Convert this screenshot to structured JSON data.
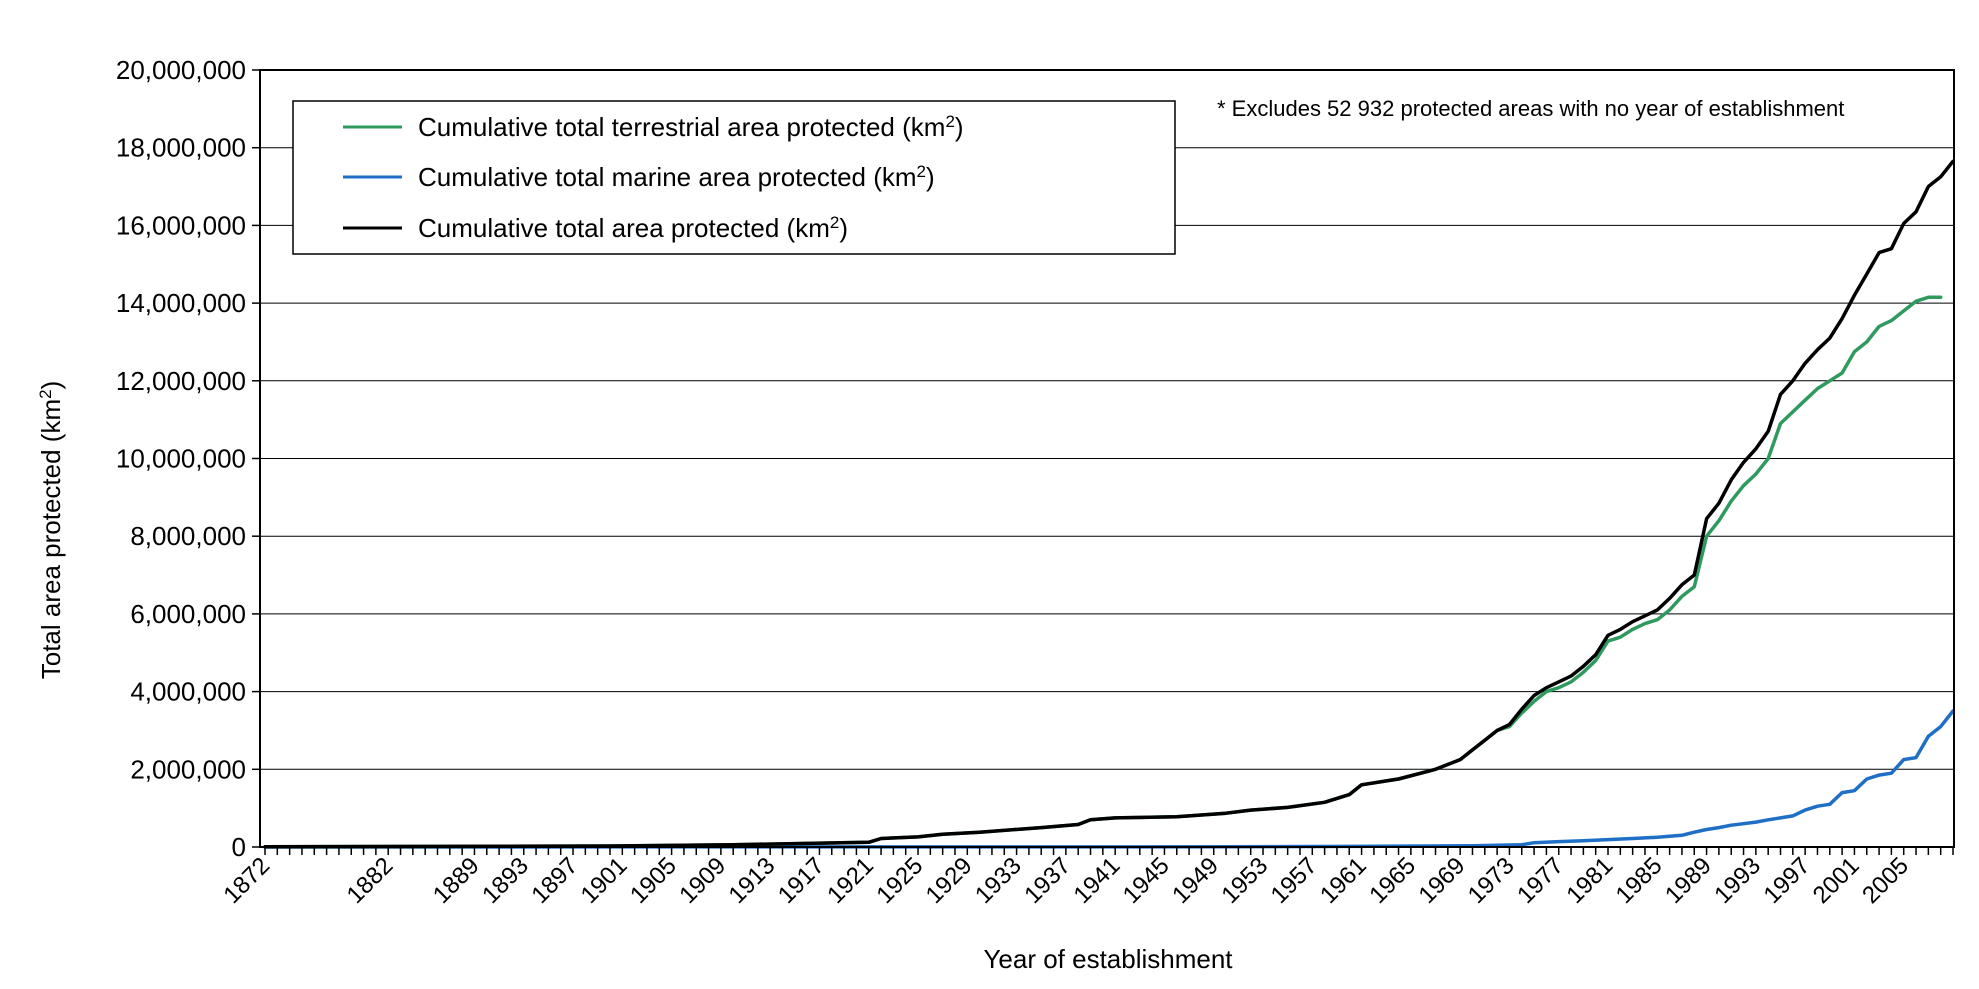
{
  "chart_data": {
    "type": "line",
    "ylabel_main": "Total area protected (km",
    "ylabel_sup": "2",
    "ylabel_end": ")",
    "xlabel": "Year of establishment",
    "note": "* Excludes 52 932 protected areas with no year of establishment",
    "ylim": [
      0,
      20000000
    ],
    "xlim": [
      1872,
      2008
    ],
    "y_ticks": [
      0,
      2000000,
      4000000,
      6000000,
      8000000,
      10000000,
      12000000,
      14000000,
      16000000,
      18000000,
      20000000
    ],
    "y_tick_labels": [
      "0",
      "2,000,000",
      "4,000,000",
      "6,000,000",
      "8,000,000",
      "10,000,000",
      "12,000,000",
      "14,000,000",
      "16,000,000",
      "18,000,000",
      "20,000,000"
    ],
    "x_tick_labels": [
      "1872",
      "1882",
      "1889",
      "1893",
      "1897",
      "1901",
      "1905",
      "1909",
      "1913",
      "1917",
      "1921",
      "1925",
      "1929",
      "1933",
      "1937",
      "1941",
      "1945",
      "1949",
      "1953",
      "1957",
      "1961",
      "1965",
      "1969",
      "1973",
      "1977",
      "1981",
      "1985",
      "1989",
      "1993",
      "1997",
      "2001",
      "2005"
    ],
    "grid": "horizontal",
    "legend_position": "top-left",
    "series": [
      {
        "name_main": "Cumulative total terrestrial area protected (km",
        "name_sup": "2",
        "name_end": ")",
        "color": "#2e9a5e",
        "points": [
          [
            1872,
            5000
          ],
          [
            1900,
            25000
          ],
          [
            1910,
            60000
          ],
          [
            1921,
            120000
          ],
          [
            1922,
            220000
          ],
          [
            1925,
            260000
          ],
          [
            1927,
            330000
          ],
          [
            1930,
            380000
          ],
          [
            1935,
            500000
          ],
          [
            1938,
            580000
          ],
          [
            1939,
            700000
          ],
          [
            1941,
            750000
          ],
          [
            1946,
            780000
          ],
          [
            1950,
            870000
          ],
          [
            1952,
            950000
          ],
          [
            1955,
            1020000
          ],
          [
            1958,
            1150000
          ],
          [
            1960,
            1350000
          ],
          [
            1961,
            1600000
          ],
          [
            1964,
            1750000
          ],
          [
            1967,
            2000000
          ],
          [
            1969,
            2250000
          ],
          [
            1970,
            2500000
          ],
          [
            1971,
            2750000
          ],
          [
            1972,
            3000000
          ],
          [
            1973,
            3100000
          ],
          [
            1974,
            3450000
          ],
          [
            1975,
            3750000
          ],
          [
            1976,
            4000000
          ],
          [
            1977,
            4100000
          ],
          [
            1978,
            4250000
          ],
          [
            1979,
            4500000
          ],
          [
            1980,
            4800000
          ],
          [
            1981,
            5300000
          ],
          [
            1982,
            5400000
          ],
          [
            1983,
            5600000
          ],
          [
            1984,
            5750000
          ],
          [
            1985,
            5850000
          ],
          [
            1986,
            6100000
          ],
          [
            1987,
            6450000
          ],
          [
            1988,
            6700000
          ],
          [
            1989,
            8000000
          ],
          [
            1990,
            8400000
          ],
          [
            1991,
            8900000
          ],
          [
            1992,
            9300000
          ],
          [
            1993,
            9600000
          ],
          [
            1994,
            10000000
          ],
          [
            1995,
            10900000
          ],
          [
            1996,
            11200000
          ],
          [
            1997,
            11500000
          ],
          [
            1998,
            11800000
          ],
          [
            1999,
            12000000
          ],
          [
            2000,
            12200000
          ],
          [
            2001,
            12750000
          ],
          [
            2002,
            13000000
          ],
          [
            2003,
            13400000
          ],
          [
            2004,
            13550000
          ],
          [
            2005,
            13800000
          ],
          [
            2006,
            14050000
          ],
          [
            2007,
            14150000
          ],
          [
            2008,
            14150000
          ]
        ]
      },
      {
        "name_main": "Cumulative total marine area protected (km",
        "name_sup": "2",
        "name_end": ")",
        "color": "#1f6fc7",
        "points": [
          [
            1872,
            0
          ],
          [
            1950,
            5000
          ],
          [
            1960,
            15000
          ],
          [
            1970,
            30000
          ],
          [
            1974,
            60000
          ],
          [
            1975,
            110000
          ],
          [
            1977,
            140000
          ],
          [
            1979,
            160000
          ],
          [
            1981,
            190000
          ],
          [
            1983,
            220000
          ],
          [
            1985,
            250000
          ],
          [
            1987,
            300000
          ],
          [
            1988,
            380000
          ],
          [
            1989,
            450000
          ],
          [
            1990,
            500000
          ],
          [
            1991,
            560000
          ],
          [
            1992,
            600000
          ],
          [
            1993,
            640000
          ],
          [
            1994,
            700000
          ],
          [
            1995,
            750000
          ],
          [
            1996,
            800000
          ],
          [
            1997,
            950000
          ],
          [
            1998,
            1050000
          ],
          [
            1999,
            1100000
          ],
          [
            2000,
            1400000
          ],
          [
            2001,
            1450000
          ],
          [
            2002,
            1750000
          ],
          [
            2003,
            1850000
          ],
          [
            2004,
            1900000
          ],
          [
            2005,
            2250000
          ],
          [
            2006,
            2300000
          ],
          [
            2007,
            2850000
          ],
          [
            2008,
            3100000
          ],
          [
            2009,
            3500000
          ]
        ]
      },
      {
        "name_main": "Cumulative total area protected (km",
        "name_sup": "2",
        "name_end": ")",
        "color": "#000000",
        "points": [
          [
            1872,
            5000
          ],
          [
            1900,
            25000
          ],
          [
            1910,
            60000
          ],
          [
            1921,
            120000
          ],
          [
            1922,
            220000
          ],
          [
            1925,
            260000
          ],
          [
            1927,
            330000
          ],
          [
            1930,
            380000
          ],
          [
            1935,
            500000
          ],
          [
            1938,
            580000
          ],
          [
            1939,
            700000
          ],
          [
            1941,
            750000
          ],
          [
            1946,
            780000
          ],
          [
            1950,
            870000
          ],
          [
            1952,
            950000
          ],
          [
            1955,
            1020000
          ],
          [
            1958,
            1150000
          ],
          [
            1960,
            1350000
          ],
          [
            1961,
            1600000
          ],
          [
            1964,
            1750000
          ],
          [
            1967,
            2000000
          ],
          [
            1969,
            2250000
          ],
          [
            1970,
            2500000
          ],
          [
            1971,
            2750000
          ],
          [
            1972,
            3000000
          ],
          [
            1973,
            3150000
          ],
          [
            1974,
            3550000
          ],
          [
            1975,
            3900000
          ],
          [
            1976,
            4100000
          ],
          [
            1977,
            4250000
          ],
          [
            1978,
            4400000
          ],
          [
            1979,
            4650000
          ],
          [
            1980,
            4950000
          ],
          [
            1981,
            5450000
          ],
          [
            1982,
            5600000
          ],
          [
            1983,
            5800000
          ],
          [
            1984,
            5950000
          ],
          [
            1985,
            6100000
          ],
          [
            1986,
            6400000
          ],
          [
            1987,
            6750000
          ],
          [
            1988,
            7000000
          ],
          [
            1989,
            8450000
          ],
          [
            1990,
            8850000
          ],
          [
            1991,
            9450000
          ],
          [
            1992,
            9900000
          ],
          [
            1993,
            10250000
          ],
          [
            1994,
            10700000
          ],
          [
            1995,
            11650000
          ],
          [
            1996,
            12000000
          ],
          [
            1997,
            12450000
          ],
          [
            1998,
            12800000
          ],
          [
            1999,
            13100000
          ],
          [
            2000,
            13600000
          ],
          [
            2001,
            14200000
          ],
          [
            2002,
            14750000
          ],
          [
            2003,
            15300000
          ],
          [
            2004,
            15400000
          ],
          [
            2005,
            16050000
          ],
          [
            2006,
            16350000
          ],
          [
            2007,
            17000000
          ],
          [
            2008,
            17250000
          ],
          [
            2009,
            17650000
          ]
        ]
      }
    ]
  }
}
